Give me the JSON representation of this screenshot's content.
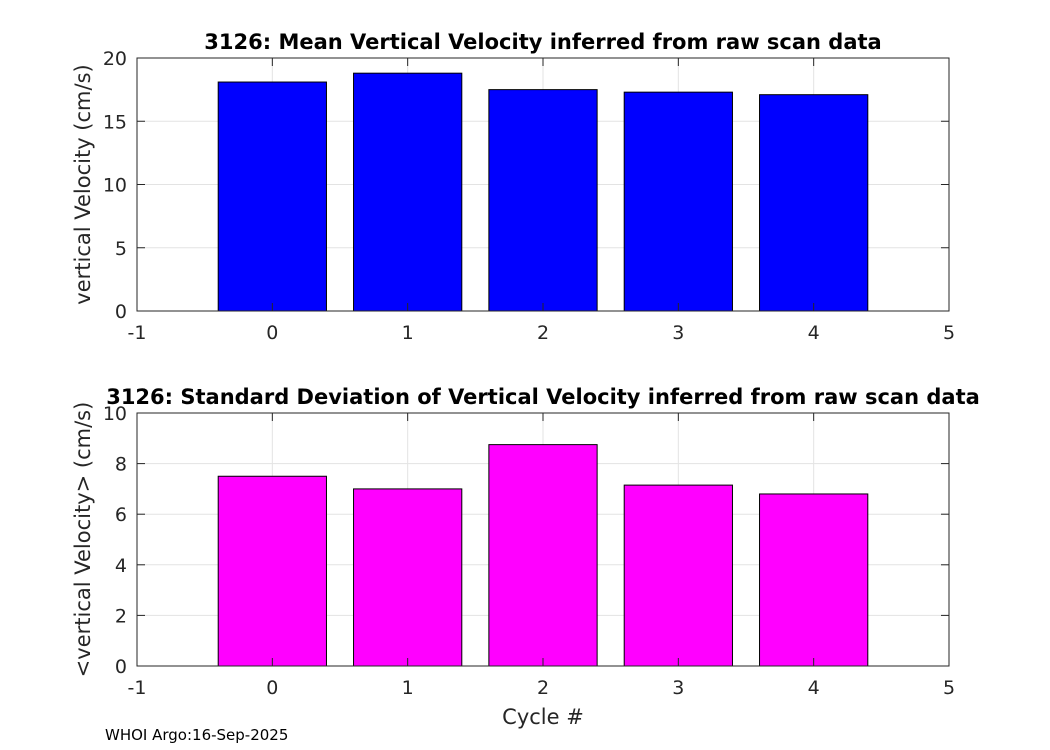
{
  "chart_data": [
    {
      "type": "bar",
      "title": "3126: Mean Vertical Velocity inferred from raw scan data",
      "xlabel": "",
      "ylabel": "vertical Velocity (cm/s)",
      "categories": [
        0,
        1,
        2,
        3,
        4
      ],
      "values": [
        18.1,
        18.8,
        17.5,
        17.3,
        17.1
      ],
      "xlim": [
        -1,
        5
      ],
      "ylim": [
        0,
        20
      ],
      "xticks": [
        -1,
        0,
        1,
        2,
        3,
        4,
        5
      ],
      "yticks": [
        0,
        5,
        10,
        15,
        20
      ],
      "grid": true,
      "bar_color": "#0000ff"
    },
    {
      "type": "bar",
      "title": "3126: Standard Deviation of Vertical Velocity inferred from raw scan data",
      "xlabel": "Cycle #",
      "ylabel": "<vertical Velocity> (cm/s)",
      "categories": [
        0,
        1,
        2,
        3,
        4
      ],
      "values": [
        7.5,
        7.0,
        8.75,
        7.15,
        6.8
      ],
      "xlim": [
        -1,
        5
      ],
      "ylim": [
        0,
        10
      ],
      "xticks": [
        -1,
        0,
        1,
        2,
        3,
        4,
        5
      ],
      "yticks": [
        0,
        2,
        4,
        6,
        8,
        10
      ],
      "grid": true,
      "bar_color": "#ff00ff"
    }
  ],
  "footer": "WHOI Argo:16-Sep-2025"
}
